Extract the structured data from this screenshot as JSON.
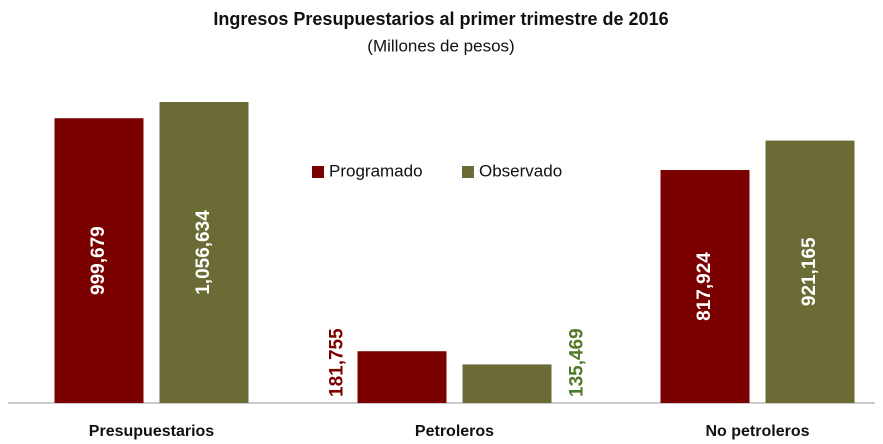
{
  "chart_data": {
    "type": "bar",
    "title": "Ingresos Presupuestarios al primer trimestre de 2016",
    "subtitle": "(Millones de pesos)",
    "categories": [
      "Presupuestarios",
      "Petroleros",
      "No petroleros"
    ],
    "series": [
      {
        "name": "Programado",
        "color": "#7b0000",
        "label_color": "#7b0000",
        "values": [
          999679,
          181755,
          817924
        ],
        "value_labels": [
          "999,679",
          "181,755",
          "817,924"
        ]
      },
      {
        "name": "Observado",
        "color": "#6b6b35",
        "label_color": "#4f7a28",
        "values": [
          1056634,
          135469,
          921165
        ],
        "value_labels": [
          "1,056,634",
          "135,469",
          "921,165"
        ]
      }
    ]
  }
}
